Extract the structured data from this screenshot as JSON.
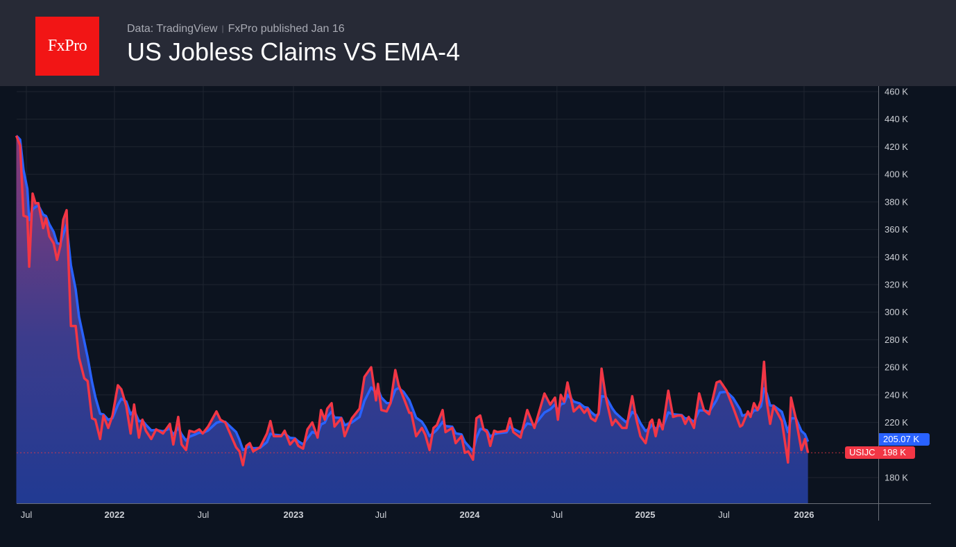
{
  "header": {
    "logo_text": "FxPro",
    "source": "Data: TradingView",
    "published": "FxPro published Jan 16",
    "title": "US Jobless Claims VS EMA-4"
  },
  "colors": {
    "claims": "#f23645",
    "ema": "#2962ff",
    "background": "#0c131f",
    "header": "#272a36",
    "logo": "#f21515"
  },
  "labels": {
    "ema_value": "205.07 K",
    "claims_symbol": "USIJC",
    "claims_value": "198 K"
  },
  "chart_data": {
    "type": "line",
    "title": "US Jobless Claims VS EMA-4",
    "y_unit": "K",
    "ylim": [
      150,
      465
    ],
    "y_ticks": [
      "460 K",
      "440 K",
      "420 K",
      "400 K",
      "380 K",
      "360 K",
      "340 K",
      "320 K",
      "300 K",
      "280 K",
      "260 K",
      "240 K",
      "220 K",
      "180 K"
    ],
    "y_tick_values": [
      460,
      440,
      420,
      400,
      380,
      360,
      340,
      320,
      300,
      280,
      260,
      240,
      220,
      180
    ],
    "x_ticks": [
      {
        "label": "Jul",
        "date": "2021-07-01",
        "year": false
      },
      {
        "label": "2022",
        "date": "2022-01-01",
        "year": true
      },
      {
        "label": "Jul",
        "date": "2022-07-01",
        "year": false
      },
      {
        "label": "2023",
        "date": "2023-01-01",
        "year": true
      },
      {
        "label": "Jul",
        "date": "2023-07-01",
        "year": false
      },
      {
        "label": "2024",
        "date": "2024-01-01",
        "year": true
      },
      {
        "label": "Jul",
        "date": "2024-07-01",
        "year": false
      },
      {
        "label": "2025",
        "date": "2025-01-01",
        "year": true
      },
      {
        "label": "Jul",
        "date": "2025-07-01",
        "year": false
      },
      {
        "label": "2026",
        "date": "2026-01-01",
        "year": true
      }
    ],
    "grid": true,
    "series": [
      {
        "name": "USIJC",
        "role": "claims",
        "points": [
          [
            "2021-06-10",
            428
          ],
          [
            "2021-06-18",
            421
          ],
          [
            "2021-06-25",
            370
          ],
          [
            "2021-07-03",
            369
          ],
          [
            "2021-07-07",
            333
          ],
          [
            "2021-07-14",
            386
          ],
          [
            "2021-07-20",
            379
          ],
          [
            "2021-07-26",
            379
          ],
          [
            "2021-08-05",
            361
          ],
          [
            "2021-08-11",
            368
          ],
          [
            "2021-08-18",
            355
          ],
          [
            "2021-08-27",
            350
          ],
          [
            "2021-09-03",
            338
          ],
          [
            "2021-09-10",
            348
          ],
          [
            "2021-09-16",
            367
          ],
          [
            "2021-09-23",
            374
          ],
          [
            "2021-10-02",
            290
          ],
          [
            "2021-10-12",
            290
          ],
          [
            "2021-10-19",
            267
          ],
          [
            "2021-10-30",
            252
          ],
          [
            "2021-11-06",
            250
          ],
          [
            "2021-11-15",
            223
          ],
          [
            "2021-11-22",
            222
          ],
          [
            "2021-12-02",
            208
          ],
          [
            "2021-12-09",
            225
          ],
          [
            "2021-12-19",
            216
          ],
          [
            "2021-12-28",
            225
          ],
          [
            "2022-01-08",
            247
          ],
          [
            "2022-01-15",
            244
          ],
          [
            "2022-01-25",
            232
          ],
          [
            "2022-02-03",
            212
          ],
          [
            "2022-02-10",
            233
          ],
          [
            "2022-02-20",
            209
          ],
          [
            "2022-02-27",
            222
          ],
          [
            "2022-03-06",
            214
          ],
          [
            "2022-03-17",
            208
          ],
          [
            "2022-03-27",
            215
          ],
          [
            "2022-04-10",
            212
          ],
          [
            "2022-04-24",
            219
          ],
          [
            "2022-05-01",
            204
          ],
          [
            "2022-05-11",
            224
          ],
          [
            "2022-05-18",
            204
          ],
          [
            "2022-05-27",
            200
          ],
          [
            "2022-06-03",
            214
          ],
          [
            "2022-06-13",
            213
          ],
          [
            "2022-06-23",
            215
          ],
          [
            "2022-06-30",
            212
          ],
          [
            "2022-07-11",
            217
          ],
          [
            "2022-07-28",
            228
          ],
          [
            "2022-08-05",
            222
          ],
          [
            "2022-08-15",
            220
          ],
          [
            "2022-09-06",
            202
          ],
          [
            "2022-09-13",
            199
          ],
          [
            "2022-09-20",
            189
          ],
          [
            "2022-09-27",
            203
          ],
          [
            "2022-10-04",
            205
          ],
          [
            "2022-10-11",
            199
          ],
          [
            "2022-10-25",
            202
          ],
          [
            "2022-11-08",
            212
          ],
          [
            "2022-11-15",
            221
          ],
          [
            "2022-11-22",
            210
          ],
          [
            "2022-12-07",
            210
          ],
          [
            "2022-12-14",
            214
          ],
          [
            "2022-12-25",
            204
          ],
          [
            "2023-01-04",
            208
          ],
          [
            "2023-01-11",
            203
          ],
          [
            "2023-01-21",
            201
          ],
          [
            "2023-01-30",
            215
          ],
          [
            "2023-02-09",
            220
          ],
          [
            "2023-02-20",
            209
          ],
          [
            "2023-02-27",
            229
          ],
          [
            "2023-03-07",
            222
          ],
          [
            "2023-03-12",
            230
          ],
          [
            "2023-03-21",
            234
          ],
          [
            "2023-03-27",
            217
          ],
          [
            "2023-04-10",
            223
          ],
          [
            "2023-04-17",
            210
          ],
          [
            "2023-05-02",
            223
          ],
          [
            "2023-05-18",
            230
          ],
          [
            "2023-05-28",
            253
          ],
          [
            "2023-06-11",
            260
          ],
          [
            "2023-06-21",
            236
          ],
          [
            "2023-06-25",
            248
          ],
          [
            "2023-07-02",
            229
          ],
          [
            "2023-07-13",
            228
          ],
          [
            "2023-07-21",
            234
          ],
          [
            "2023-07-31",
            258
          ],
          [
            "2023-08-07",
            247
          ],
          [
            "2023-08-17",
            238
          ],
          [
            "2023-08-29",
            227
          ],
          [
            "2023-09-02",
            227
          ],
          [
            "2023-09-12",
            210
          ],
          [
            "2023-09-24",
            216
          ],
          [
            "2023-10-01",
            211
          ],
          [
            "2023-10-10",
            200
          ],
          [
            "2023-10-18",
            216
          ],
          [
            "2023-10-25",
            218
          ],
          [
            "2023-11-06",
            229
          ],
          [
            "2023-11-12",
            213
          ],
          [
            "2023-11-26",
            216
          ],
          [
            "2023-12-03",
            205
          ],
          [
            "2023-12-15",
            210
          ],
          [
            "2023-12-22",
            198
          ],
          [
            "2023-12-29",
            199
          ],
          [
            "2024-01-08",
            193
          ],
          [
            "2024-01-15",
            223
          ],
          [
            "2024-01-23",
            225
          ],
          [
            "2024-01-30",
            215
          ],
          [
            "2024-02-06",
            213
          ],
          [
            "2024-02-13",
            203
          ],
          [
            "2024-02-21",
            214
          ],
          [
            "2024-02-28",
            213
          ],
          [
            "2024-03-18",
            214
          ],
          [
            "2024-03-25",
            223
          ],
          [
            "2024-04-01",
            213
          ],
          [
            "2024-04-16",
            209
          ],
          [
            "2024-04-30",
            229
          ],
          [
            "2024-05-15",
            216
          ],
          [
            "2024-06-05",
            241
          ],
          [
            "2024-06-17",
            233
          ],
          [
            "2024-06-27",
            238
          ],
          [
            "2024-07-03",
            222
          ],
          [
            "2024-07-09",
            240
          ],
          [
            "2024-07-16",
            235
          ],
          [
            "2024-07-23",
            249
          ],
          [
            "2024-08-05",
            228
          ],
          [
            "2024-08-17",
            232
          ],
          [
            "2024-08-27",
            227
          ],
          [
            "2024-09-03",
            230
          ],
          [
            "2024-09-10",
            223
          ],
          [
            "2024-09-19",
            221
          ],
          [
            "2024-09-26",
            227
          ],
          [
            "2024-10-02",
            259
          ],
          [
            "2024-10-11",
            238
          ],
          [
            "2024-10-24",
            218
          ],
          [
            "2024-10-31",
            222
          ],
          [
            "2024-11-14",
            216
          ],
          [
            "2024-11-23",
            216
          ],
          [
            "2024-12-05",
            239
          ],
          [
            "2024-12-13",
            223
          ],
          [
            "2024-12-22",
            210
          ],
          [
            "2025-01-02",
            205
          ],
          [
            "2025-01-12",
            220
          ],
          [
            "2025-01-17",
            222
          ],
          [
            "2025-01-25",
            210
          ],
          [
            "2025-02-02",
            222
          ],
          [
            "2025-02-10",
            215
          ],
          [
            "2025-02-23",
            243
          ],
          [
            "2025-03-06",
            224
          ],
          [
            "2025-03-17",
            225
          ],
          [
            "2025-03-26",
            225
          ],
          [
            "2025-04-03",
            219
          ],
          [
            "2025-04-11",
            224
          ],
          [
            "2025-04-23",
            216
          ],
          [
            "2025-05-05",
            241
          ],
          [
            "2025-05-16",
            229
          ],
          [
            "2025-05-28",
            226
          ],
          [
            "2025-06-14",
            249
          ],
          [
            "2025-06-22",
            250
          ],
          [
            "2025-07-07",
            243
          ],
          [
            "2025-07-22",
            231
          ],
          [
            "2025-08-07",
            217
          ],
          [
            "2025-08-12",
            218
          ],
          [
            "2025-08-25",
            228
          ],
          [
            "2025-08-31",
            224
          ],
          [
            "2025-09-08",
            234
          ],
          [
            "2025-09-16",
            229
          ],
          [
            "2025-09-24",
            236
          ],
          [
            "2025-10-01",
            264
          ],
          [
            "2025-10-07",
            236
          ],
          [
            "2025-10-15",
            219
          ],
          [
            "2025-10-23",
            232
          ],
          [
            "2025-11-11",
            221
          ],
          [
            "2025-11-25",
            191
          ],
          [
            "2025-12-02",
            238
          ],
          [
            "2025-12-13",
            223
          ],
          [
            "2025-12-26",
            200
          ],
          [
            "2026-01-03",
            208
          ],
          [
            "2026-01-10",
            198
          ]
        ]
      },
      {
        "name": "EMA-4",
        "role": "ema",
        "period": 4,
        "last_value": 205.07
      }
    ]
  }
}
